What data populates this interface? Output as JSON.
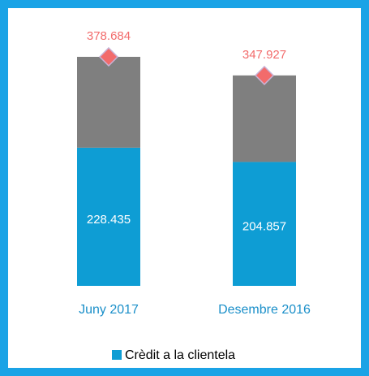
{
  "chart_data": {
    "type": "stacked_bar",
    "categories": [
      "Juny 2017",
      "Desembre 2016"
    ],
    "series": [
      {
        "name": "Crèdit a la clientela",
        "color": "#0e9dd4",
        "values": [
          228.435,
          204.857
        ]
      },
      {
        "color": "#7f7f7f",
        "values": [
          150.249,
          143.07
        ]
      }
    ],
    "totals": {
      "color": "#f26b6b",
      "values": [
        378.684,
        347.927
      ]
    },
    "ylim": [
      0,
      380
    ]
  }
}
